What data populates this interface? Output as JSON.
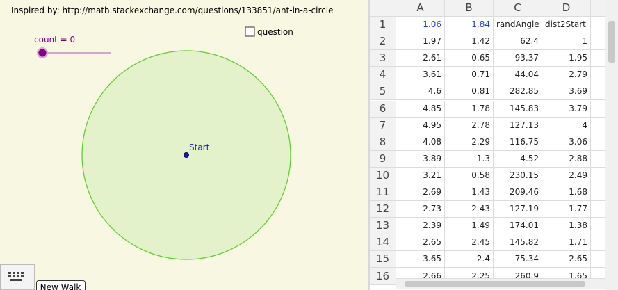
{
  "header": {
    "title": "Inspired by: http://math.stackexchange.com/questions/133851/ant-in-a-circle"
  },
  "slider": {
    "label": "count = 0"
  },
  "checkbox": {
    "label": "question"
  },
  "point": {
    "label": "Start"
  },
  "button": {
    "label": "New Walk"
  },
  "table": {
    "columns": [
      "A",
      "B",
      "C",
      "D"
    ],
    "row_numbers": [
      1,
      2,
      3,
      4,
      5,
      6,
      7,
      8,
      9,
      10,
      11,
      12,
      13,
      14,
      15,
      16
    ],
    "rows": [
      [
        1.06,
        1.84,
        "randAngle",
        "dist2Start"
      ],
      [
        1.97,
        1.42,
        62.4,
        1
      ],
      [
        2.61,
        0.65,
        93.37,
        1.95
      ],
      [
        3.61,
        0.71,
        44.04,
        2.79
      ],
      [
        4.6,
        0.81,
        282.85,
        3.69
      ],
      [
        4.85,
        1.78,
        145.83,
        3.79
      ],
      [
        4.95,
        2.78,
        127.13,
        4
      ],
      [
        4.08,
        2.29,
        116.75,
        3.06
      ],
      [
        3.89,
        1.3,
        4.52,
        2.88
      ],
      [
        3.21,
        0.58,
        230.15,
        2.49
      ],
      [
        2.69,
        1.43,
        209.46,
        1.68
      ],
      [
        2.73,
        2.43,
        127.19,
        1.77
      ],
      [
        2.39,
        1.49,
        174.01,
        1.38
      ],
      [
        2.65,
        2.45,
        145.82,
        1.71
      ],
      [
        3.65,
        2.4,
        75.34,
        2.65
      ],
      [
        2.66,
        2.25,
        260.9,
        1.65
      ]
    ]
  }
}
